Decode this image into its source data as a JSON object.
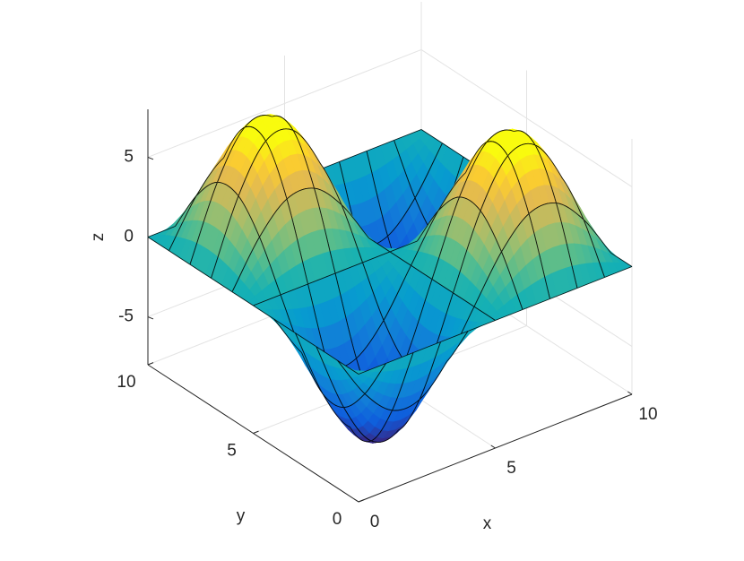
{
  "chart_data": {
    "type": "surface",
    "x": [
      0,
      1,
      2,
      3,
      4,
      5,
      6,
      7,
      8,
      9,
      10
    ],
    "y": [
      0,
      1,
      2,
      3,
      4,
      5,
      6,
      7,
      8,
      9,
      10
    ],
    "z": [
      [
        0,
        0,
        0,
        0,
        0,
        0,
        0,
        0,
        0,
        0,
        0
      ],
      [
        0,
        -2.76,
        -4.47,
        -4.47,
        -2.76,
        0,
        2.76,
        4.47,
        4.47,
        2.76,
        0
      ],
      [
        0,
        -4.47,
        -7.24,
        -7.24,
        -4.47,
        0,
        4.47,
        7.24,
        7.24,
        4.47,
        0
      ],
      [
        0,
        -4.47,
        -7.24,
        -7.24,
        -4.47,
        0,
        4.47,
        7.24,
        7.24,
        4.47,
        0
      ],
      [
        0,
        -2.76,
        -4.47,
        -4.47,
        -2.76,
        0,
        2.76,
        4.47,
        4.47,
        2.76,
        0
      ],
      [
        0,
        0,
        0,
        0,
        0,
        0,
        0,
        0,
        0,
        0,
        0
      ],
      [
        0,
        2.76,
        4.47,
        4.47,
        2.76,
        0,
        -2.76,
        -4.47,
        -4.47,
        -2.76,
        0
      ],
      [
        0,
        4.47,
        7.24,
        7.24,
        4.47,
        0,
        -4.47,
        -7.24,
        -7.24,
        -4.47,
        0
      ],
      [
        0,
        4.47,
        7.24,
        7.24,
        4.47,
        0,
        -4.47,
        -7.24,
        -7.24,
        -4.47,
        0
      ],
      [
        0,
        2.76,
        4.47,
        4.47,
        2.76,
        0,
        -2.76,
        -4.47,
        -4.47,
        -2.76,
        0
      ],
      [
        0,
        0,
        0,
        0,
        0,
        0,
        0,
        0,
        0,
        0,
        0
      ]
    ],
    "xlim": [
      0,
      10
    ],
    "ylim": [
      0,
      10
    ],
    "zlim": [
      -8,
      8
    ],
    "xticks": [
      0,
      5,
      10
    ],
    "yticks": [
      0,
      5,
      10
    ],
    "zticks": [
      -5,
      0,
      5
    ],
    "xlabel": "x",
    "ylabel": "y",
    "zlabel": "z",
    "grid": true,
    "colormap": "parula",
    "edge_color": "#000000"
  }
}
